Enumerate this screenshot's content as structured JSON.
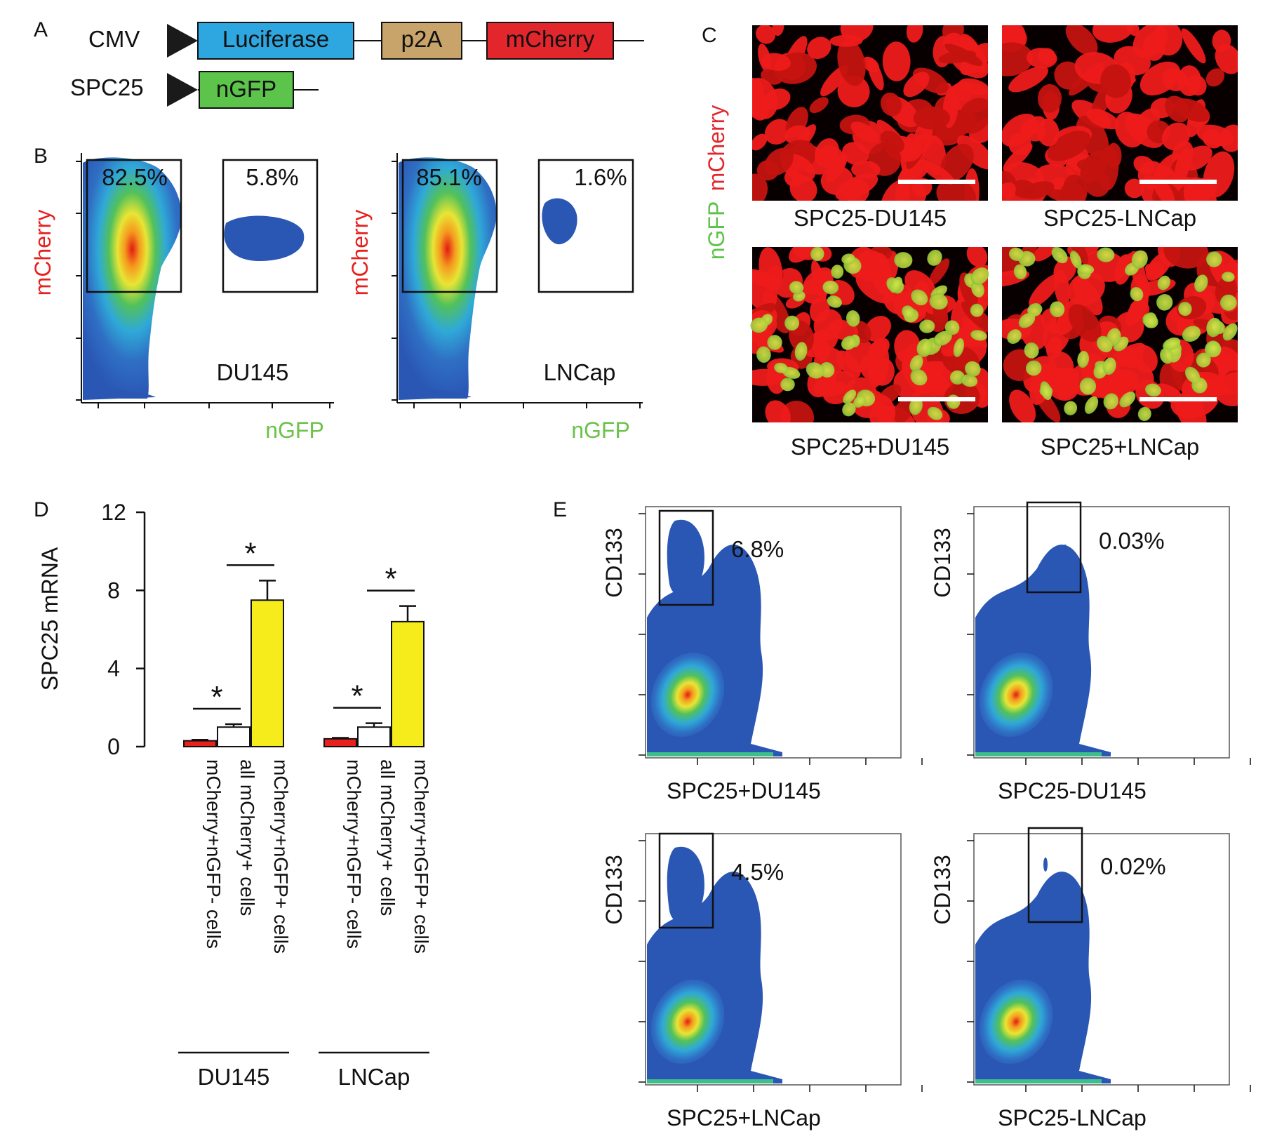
{
  "colors": {
    "red": "#e8201e",
    "luciferase": "#2ea6df",
    "p2a": "#c9a46a",
    "mcherry": "#e3262b",
    "ngfp": "#5cc44a",
    "gfp_text": "#6cc24a",
    "yellow": "#f6ec1c",
    "flow_blue": "#2a57b4"
  },
  "panel_labels": [
    "A",
    "B",
    "C",
    "D",
    "E"
  ],
  "panel_a": {
    "row1": {
      "promoter": "CMV",
      "boxes": [
        "Luciferase",
        "p2A",
        "mCherry"
      ]
    },
    "row2": {
      "promoter": "SPC25",
      "boxes": [
        "nGFP"
      ]
    }
  },
  "panel_b": {
    "plots": [
      {
        "cell": "DU145",
        "gate_left_pct": "82.5%",
        "gate_right_pct": "5.8%",
        "ylabel": "mCherry",
        "xlabel": "nGFP"
      },
      {
        "cell": "LNCap",
        "gate_left_pct": "85.1%",
        "gate_right_pct": "1.6%",
        "ylabel": "mCherry",
        "xlabel": "nGFP"
      }
    ]
  },
  "panel_c": {
    "side_label_green": "nGFP",
    "side_label_red": "mCherry",
    "images": [
      {
        "caption": "SPC25-DU145",
        "type": "red-only"
      },
      {
        "caption": "SPC25-LNCap",
        "type": "red-only"
      },
      {
        "caption": "SPC25+DU145",
        "type": "red-green"
      },
      {
        "caption": "SPC25+LNCap",
        "type": "red-green"
      }
    ]
  },
  "chart_data": {
    "type": "bar",
    "ylabel": "SPC25 mRNA",
    "ylim": [
      0,
      12
    ],
    "yticks": [
      0,
      4,
      8,
      12
    ],
    "groups": [
      {
        "name": "DU145",
        "bars": [
          {
            "label": "mCherry+nGFP- cells",
            "value": 0.3,
            "error": 0.05,
            "color": "#e8201e"
          },
          {
            "label": "all mCherry+ cells",
            "value": 1.0,
            "error": 0.15,
            "color": "#ffffff"
          },
          {
            "label": "mCherry+nGFP+ cells",
            "value": 7.5,
            "error": 1.0,
            "color": "#f6ec1c"
          }
        ],
        "significance": [
          "*",
          "*"
        ]
      },
      {
        "name": "LNCap",
        "bars": [
          {
            "label": "mCherry+nGFP- cells",
            "value": 0.4,
            "error": 0.05,
            "color": "#e8201e"
          },
          {
            "label": "all mCherry+ cells",
            "value": 1.0,
            "error": 0.2,
            "color": "#ffffff"
          },
          {
            "label": "mCherry+nGFP+ cells",
            "value": 6.4,
            "error": 0.8,
            "color": "#f6ec1c"
          }
        ],
        "significance": [
          "*",
          "*"
        ]
      }
    ]
  },
  "panel_e": {
    "plots": [
      {
        "xlabel": "SPC25+DU145",
        "ylabel": "CD133",
        "pct": "6.8%"
      },
      {
        "xlabel": "SPC25-DU145",
        "ylabel": "CD133",
        "pct": "0.03%"
      },
      {
        "xlabel": "SPC25+LNCap",
        "ylabel": "CD133",
        "pct": "4.5%"
      },
      {
        "xlabel": "SPC25-LNCap",
        "ylabel": "CD133",
        "pct": "0.02%"
      }
    ]
  }
}
